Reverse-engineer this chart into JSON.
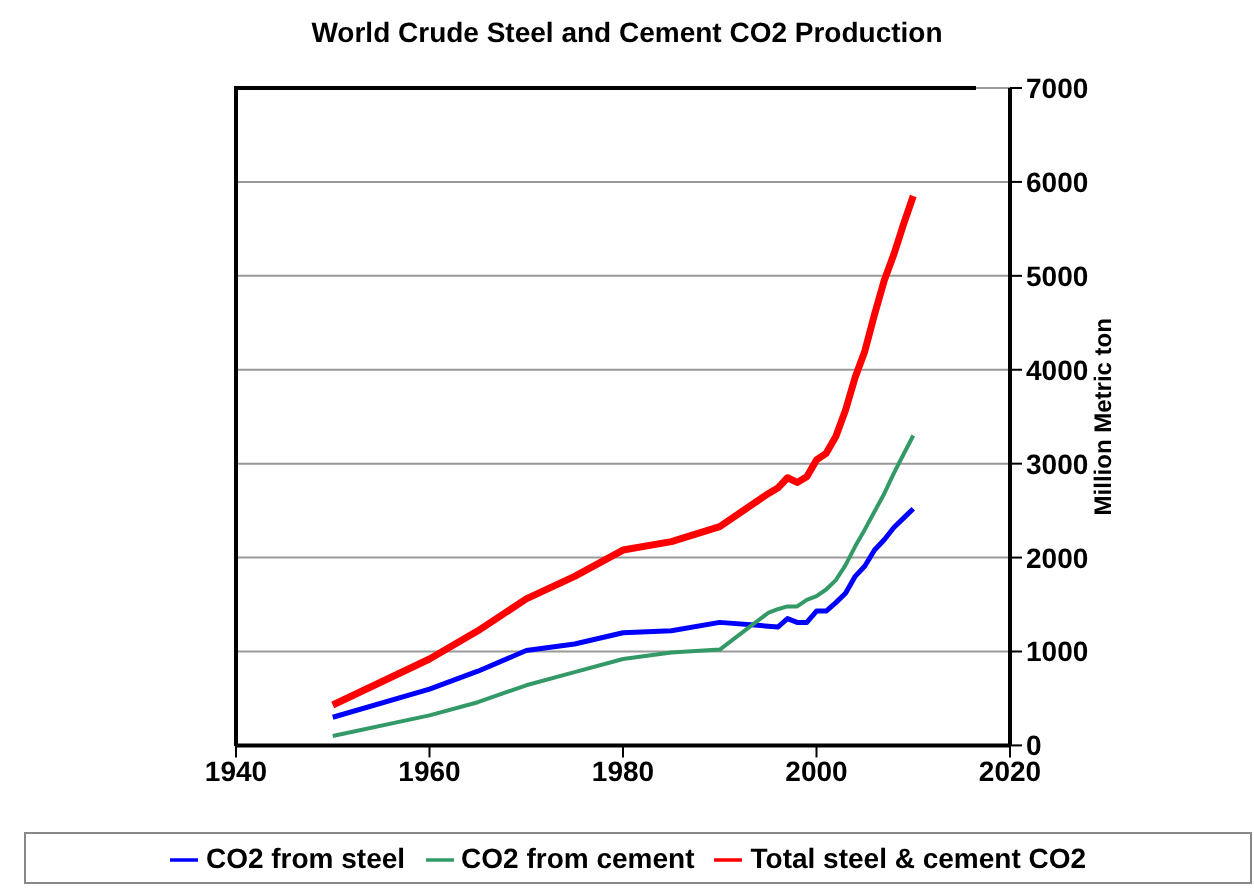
{
  "chart_data": {
    "type": "line",
    "title": "World Crude Steel and Cement CO2 Production",
    "ylabel": "Million Metric ton",
    "x": [
      1950,
      1960,
      1965,
      1970,
      1975,
      1980,
      1985,
      1990,
      1995,
      1996,
      1997,
      1998,
      1999,
      2000,
      2001,
      2002,
      2003,
      2004,
      2005,
      2006,
      2007,
      2008,
      2009,
      2010
    ],
    "series": [
      {
        "name": "CO2 from steel",
        "color": "#0000ff",
        "values": [
          300,
          600,
          790,
          1010,
          1080,
          1200,
          1220,
          1310,
          1270,
          1260,
          1350,
          1310,
          1310,
          1430,
          1430,
          1520,
          1620,
          1800,
          1910,
          2080,
          2190,
          2320,
          2420,
          2520
        ]
      },
      {
        "name": "CO2 from cement",
        "color": "#339966",
        "values": [
          100,
          320,
          460,
          640,
          780,
          920,
          990,
          1020,
          1410,
          1450,
          1480,
          1480,
          1550,
          1590,
          1660,
          1760,
          1920,
          2120,
          2300,
          2490,
          2680,
          2900,
          3100,
          3300
        ]
      },
      {
        "name": "Total steel & cement CO2",
        "color": "#ff0000",
        "values": [
          430,
          920,
          1220,
          1560,
          1800,
          2080,
          2170,
          2330,
          2680,
          2740,
          2850,
          2800,
          2860,
          3040,
          3110,
          3290,
          3570,
          3920,
          4200,
          4590,
          4950,
          5230,
          5550,
          5850
        ]
      }
    ],
    "xlim": [
      1940,
      2020
    ],
    "xticks": [
      1940,
      1960,
      1980,
      2000,
      2020
    ],
    "ylim": [
      0,
      7000
    ],
    "yticks": [
      0,
      1000,
      2000,
      3000,
      4000,
      5000,
      6000,
      7000
    ],
    "grid": "y",
    "legend": "bottom",
    "marker": "none",
    "line_style": "solid"
  }
}
